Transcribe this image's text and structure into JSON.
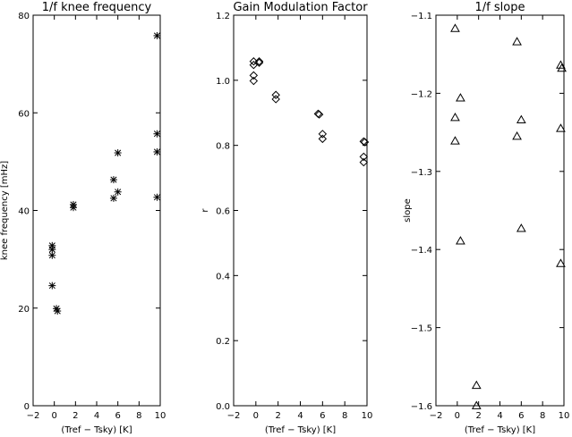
{
  "figure": {
    "background": "#ffffff",
    "ink": "#000000"
  },
  "chart_data": [
    {
      "type": "scatter",
      "title": "1/f knee frequency",
      "xlabel": "(Tref − Tsky) [K]",
      "ylabel": "knee frequency [mHz]",
      "xlim": [
        -2,
        10
      ],
      "ylim": [
        0,
        80
      ],
      "xticks": [
        -2,
        0,
        2,
        4,
        6,
        8,
        10
      ],
      "yticks": [
        0,
        20,
        40,
        60,
        80
      ],
      "xtick_labels": [
        "−2",
        "0",
        "2",
        "4",
        "6",
        "8",
        "10"
      ],
      "ytick_labels": [
        "0",
        "20",
        "40",
        "60",
        "80"
      ],
      "marker": "asterisk",
      "grid": false,
      "points": [
        {
          "x": -0.2,
          "y": 32.8
        },
        {
          "x": -0.2,
          "y": 32.0
        },
        {
          "x": -0.2,
          "y": 30.8
        },
        {
          "x": -0.2,
          "y": 24.6
        },
        {
          "x": 0.2,
          "y": 19.9
        },
        {
          "x": 0.3,
          "y": 19.4
        },
        {
          "x": 1.8,
          "y": 41.2
        },
        {
          "x": 1.8,
          "y": 40.6
        },
        {
          "x": 5.6,
          "y": 46.3
        },
        {
          "x": 5.6,
          "y": 42.5
        },
        {
          "x": 6.0,
          "y": 51.8
        },
        {
          "x": 6.0,
          "y": 43.8
        },
        {
          "x": 9.7,
          "y": 75.8
        },
        {
          "x": 9.7,
          "y": 55.7
        },
        {
          "x": 9.7,
          "y": 52.0
        },
        {
          "x": 9.7,
          "y": 42.7
        }
      ]
    },
    {
      "type": "scatter",
      "title": "Gain Modulation Factor",
      "xlabel": "(Tref − Tsky) [K]",
      "ylabel": "r",
      "xlim": [
        -2,
        10
      ],
      "ylim": [
        0.0,
        1.2
      ],
      "xticks": [
        -2,
        0,
        2,
        4,
        6,
        8,
        10
      ],
      "yticks": [
        0.0,
        0.2,
        0.4,
        0.6,
        0.8,
        1.0,
        1.2
      ],
      "xtick_labels": [
        "−2",
        "0",
        "2",
        "4",
        "6",
        "8",
        "10"
      ],
      "ytick_labels": [
        "0.0",
        "0.2",
        "0.4",
        "0.6",
        "0.8",
        "1.0",
        "1.2"
      ],
      "marker": "diamond",
      "grid": false,
      "points": [
        {
          "x": -0.2,
          "y": 1.058
        },
        {
          "x": -0.2,
          "y": 1.047
        },
        {
          "x": -0.2,
          "y": 1.015
        },
        {
          "x": -0.2,
          "y": 0.998
        },
        {
          "x": 0.3,
          "y": 1.058
        },
        {
          "x": 0.3,
          "y": 1.054
        },
        {
          "x": 1.8,
          "y": 0.955
        },
        {
          "x": 1.8,
          "y": 0.942
        },
        {
          "x": 5.6,
          "y": 0.897
        },
        {
          "x": 5.7,
          "y": 0.895
        },
        {
          "x": 6.0,
          "y": 0.835
        },
        {
          "x": 6.0,
          "y": 0.82
        },
        {
          "x": 9.7,
          "y": 0.812
        },
        {
          "x": 9.8,
          "y": 0.81
        },
        {
          "x": 9.7,
          "y": 0.765
        },
        {
          "x": 9.7,
          "y": 0.748
        }
      ]
    },
    {
      "type": "scatter",
      "title": "1/f slope",
      "xlabel": "(Tref − Tsky) [K]",
      "ylabel": "slope",
      "xlim": [
        -2,
        10
      ],
      "ylim": [
        -1.6,
        -1.1
      ],
      "xticks": [
        -2,
        0,
        2,
        4,
        6,
        8,
        10
      ],
      "yticks": [
        -1.6,
        -1.5,
        -1.4,
        -1.3,
        -1.2,
        -1.1
      ],
      "xtick_labels": [
        "−2",
        "0",
        "2",
        "4",
        "6",
        "8",
        "10"
      ],
      "ytick_labels": [
        "−1.6",
        "−1.5",
        "−1.4",
        "−1.3",
        "−1.2",
        "−1.1"
      ],
      "marker": "triangle",
      "grid": false,
      "points": [
        {
          "x": -0.2,
          "y": -1.117
        },
        {
          "x": -0.2,
          "y": -1.231
        },
        {
          "x": -0.2,
          "y": -1.261
        },
        {
          "x": 0.3,
          "y": -1.206
        },
        {
          "x": 0.3,
          "y": -1.389
        },
        {
          "x": 1.8,
          "y": -1.574
        },
        {
          "x": 1.8,
          "y": -1.6
        },
        {
          "x": 5.6,
          "y": -1.134
        },
        {
          "x": 5.6,
          "y": -1.255
        },
        {
          "x": 6.0,
          "y": -1.234
        },
        {
          "x": 6.0,
          "y": -1.373
        },
        {
          "x": 9.7,
          "y": -1.164
        },
        {
          "x": 9.8,
          "y": -1.168
        },
        {
          "x": 9.7,
          "y": -1.245
        },
        {
          "x": 9.7,
          "y": -1.418
        }
      ]
    }
  ]
}
